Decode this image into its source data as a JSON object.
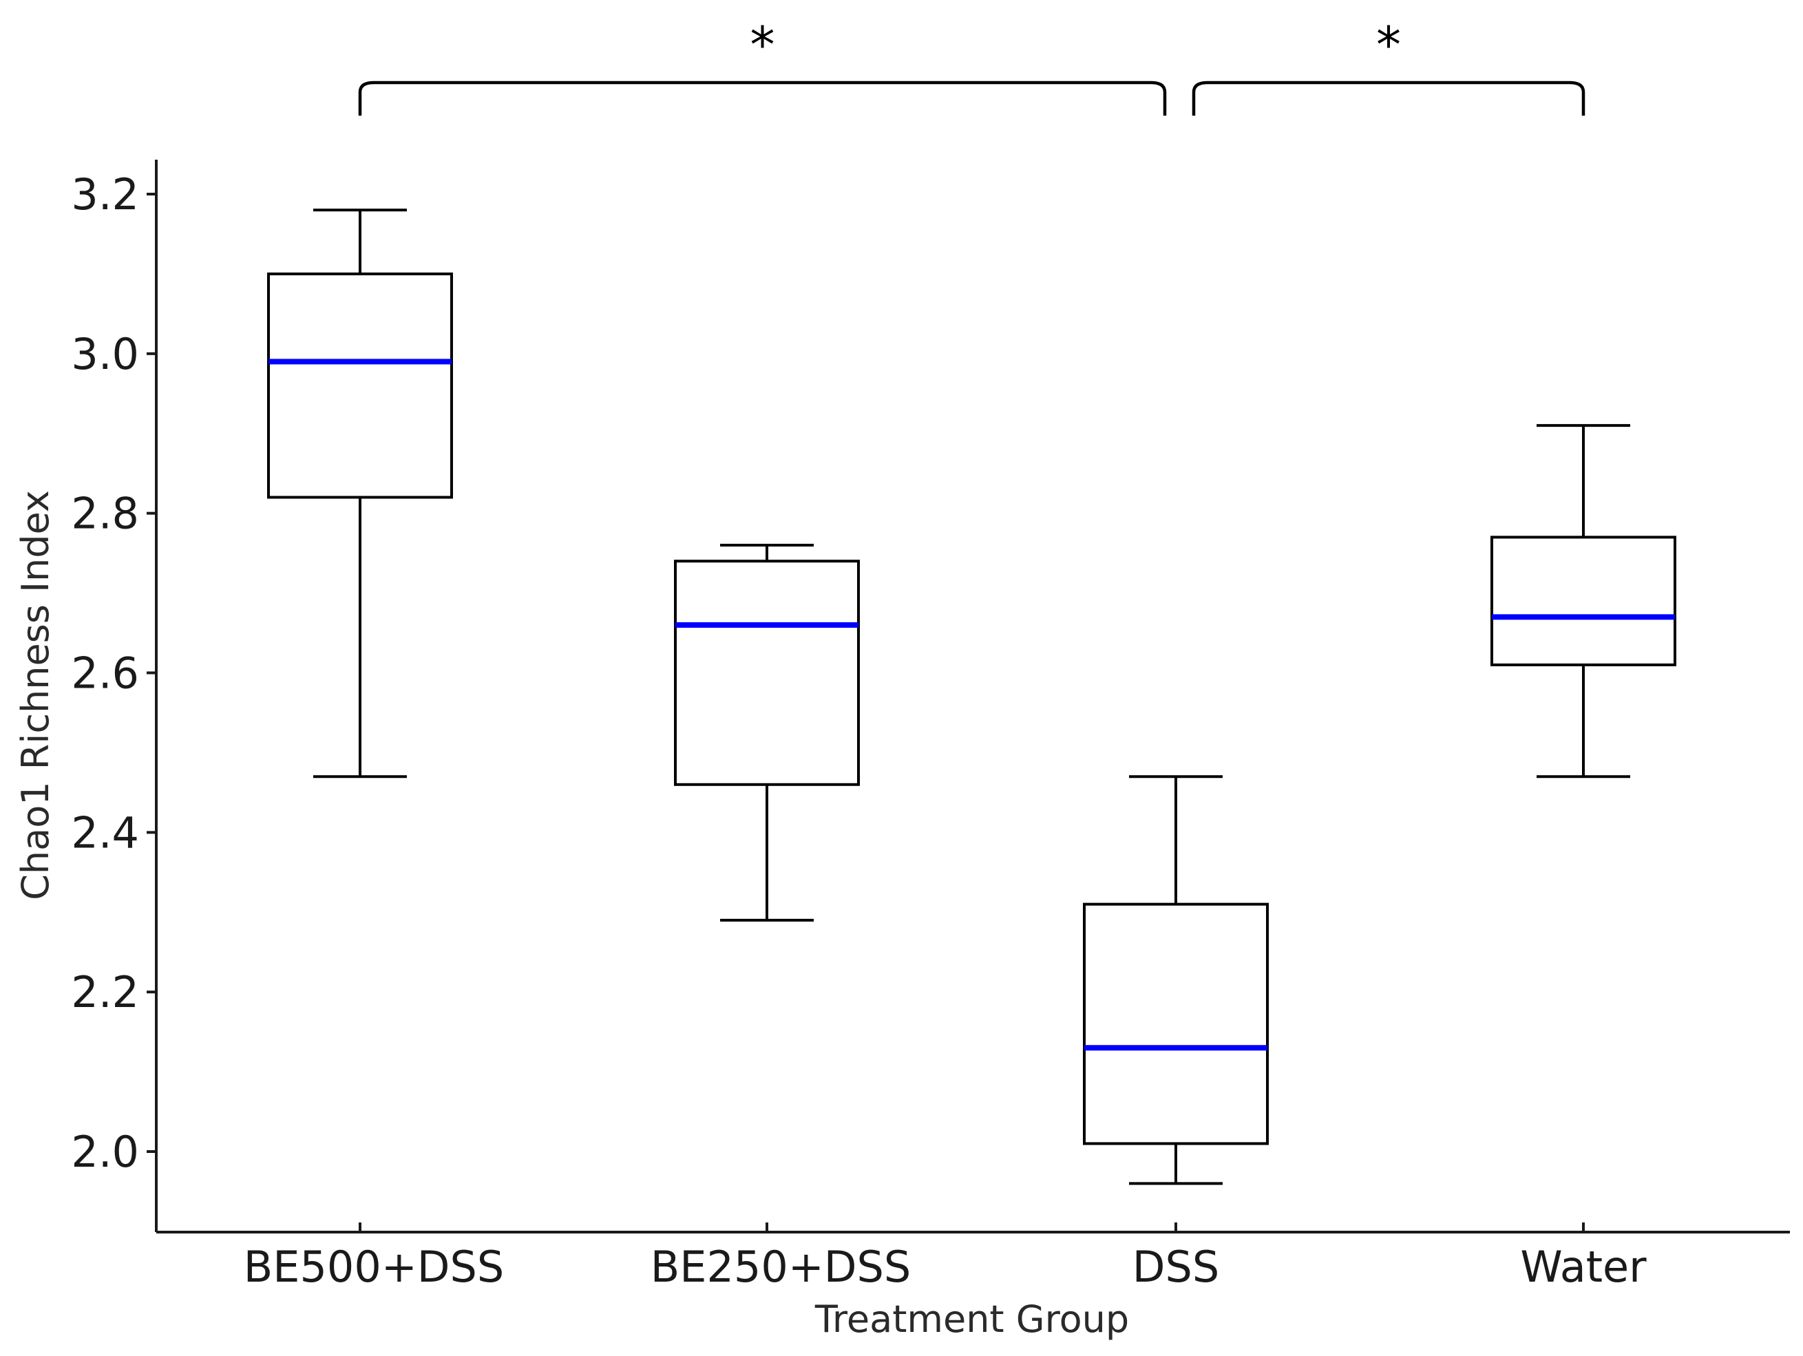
{
  "chart_data": {
    "type": "box",
    "xlabel": "Treatment Group",
    "ylabel": "Chao1 Richness Index",
    "ylim": [
      1.9,
      3.24
    ],
    "yticks": [
      2.0,
      2.2,
      2.4,
      2.6,
      2.8,
      3.0,
      3.2
    ],
    "ytick_labels": [
      "2.0",
      "2.2",
      "2.4",
      "2.6",
      "2.8",
      "3.0",
      "3.2"
    ],
    "categories": [
      "BE500+DSS",
      "BE250+DSS",
      "DSS",
      "Water"
    ],
    "boxes": [
      {
        "category": "BE500+DSS",
        "whisker_low": 2.47,
        "q1": 2.82,
        "median": 2.99,
        "q3": 3.1,
        "whisker_high": 3.18
      },
      {
        "category": "BE250+DSS",
        "whisker_low": 2.29,
        "q1": 2.46,
        "median": 2.66,
        "q3": 2.74,
        "whisker_high": 2.76
      },
      {
        "category": "DSS",
        "whisker_low": 1.96,
        "q1": 2.01,
        "median": 2.13,
        "q3": 2.31,
        "whisker_high": 2.47
      },
      {
        "category": "Water",
        "whisker_low": 2.47,
        "q1": 2.61,
        "median": 2.67,
        "q3": 2.77,
        "whisker_high": 2.91
      }
    ],
    "significance": [
      {
        "from": "BE500+DSS",
        "to": "DSS",
        "label": "*"
      },
      {
        "from": "DSS",
        "to": "Water",
        "label": "*"
      }
    ],
    "grid": false,
    "colors": {
      "box": "#000000",
      "median": "#0000ff",
      "axis": "#1a1a1a"
    }
  }
}
